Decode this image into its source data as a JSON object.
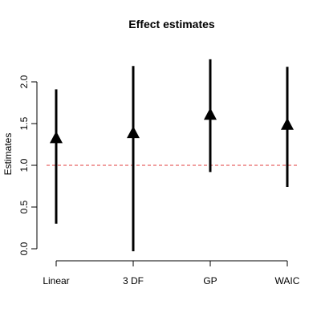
{
  "chart_data": {
    "type": "scatter",
    "title": "Effect estimates",
    "xlabel": "",
    "ylabel": "Estimates",
    "categories": [
      "Linear",
      "3 DF",
      "GP",
      "WAIC"
    ],
    "series": [
      {
        "estimate": [
          1.32,
          1.38,
          1.6,
          1.48
        ],
        "lower": [
          0.3,
          -0.03,
          0.92,
          0.74
        ],
        "upper": [
          1.91,
          2.19,
          2.27,
          2.18
        ]
      }
    ],
    "yticks": [
      "0.0",
      "0.5",
      "1.0",
      "1.5",
      "2.0"
    ],
    "ylim": [
      0,
      2
    ],
    "reference_line": {
      "y": 1.0,
      "color": "#e03c3c",
      "style": "dashed"
    },
    "grid": false,
    "legend": "none",
    "marker": "filled-triangle",
    "colors": {
      "marks": "#000000",
      "axis": "#000000"
    }
  }
}
